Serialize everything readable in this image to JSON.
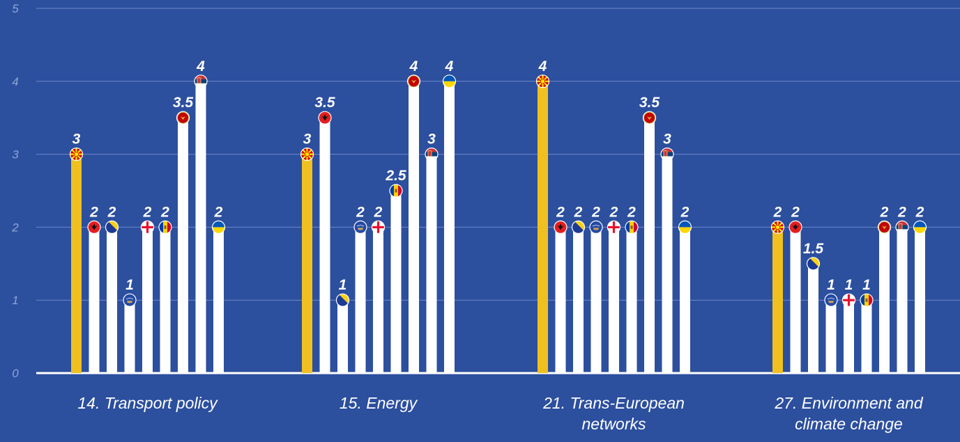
{
  "chart_data": {
    "type": "bar",
    "ylim": [
      0,
      5
    ],
    "yticks": [
      "0",
      "1",
      "2",
      "3",
      "4",
      "5"
    ],
    "grid": true,
    "categories": [
      [
        "14. Transport policy"
      ],
      [
        "15. Energy"
      ],
      [
        "21. Trans-European",
        "networks"
      ],
      [
        "27. Environment and",
        "climate change"
      ]
    ],
    "series": [
      {
        "flag": "north-macedonia",
        "color": "#f0c020",
        "values": [
          3,
          3,
          4,
          2
        ]
      },
      {
        "flag": "albania",
        "color": "#ffffff",
        "values": [
          2,
          3.5,
          2,
          2
        ]
      },
      {
        "flag": "bosnia-herzegovina",
        "color": "#ffffff",
        "values": [
          2,
          1,
          2,
          1.5
        ]
      },
      {
        "flag": "kosovo",
        "color": "#ffffff",
        "values": [
          1,
          2,
          2,
          1
        ]
      },
      {
        "flag": "georgia",
        "color": "#ffffff",
        "values": [
          2,
          2,
          2,
          1
        ]
      },
      {
        "flag": "moldova",
        "color": "#ffffff",
        "values": [
          2,
          2.5,
          2,
          1
        ]
      },
      {
        "flag": "montenegro",
        "color": "#ffffff",
        "values": [
          3.5,
          4,
          3.5,
          2
        ]
      },
      {
        "flag": "serbia",
        "color": "#ffffff",
        "values": [
          4,
          3,
          3,
          2
        ]
      },
      {
        "flag": "ukraine",
        "color": "#ffffff",
        "values": [
          2,
          4,
          2,
          2
        ]
      }
    ],
    "data_labels": [
      [
        "3",
        "2",
        "2",
        "1",
        "2",
        "2",
        "3.5",
        "4",
        "2"
      ],
      [
        "3",
        "3.5",
        "1",
        "2",
        "2",
        "2.5",
        "4",
        "3",
        "4"
      ],
      [
        "4",
        "2",
        "2",
        "2",
        "2",
        "2",
        "3.5",
        "3",
        "2"
      ],
      [
        "2",
        "2",
        "1.5",
        "1",
        "1",
        "1",
        "2",
        "2",
        "2"
      ]
    ]
  }
}
